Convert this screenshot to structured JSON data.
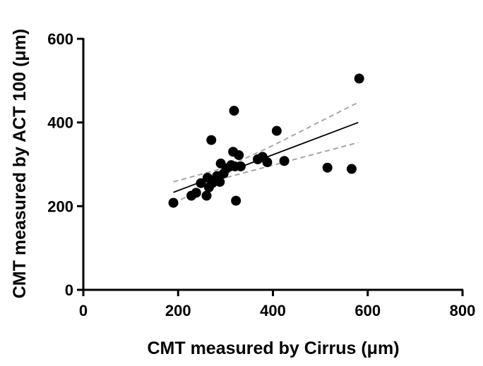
{
  "chart_data": {
    "type": "scatter",
    "title": "",
    "xlabel": "CMT measured by Cirrus (μm)",
    "ylabel": "CMT measured by ACT 100 (μm)",
    "xlim": [
      0,
      800
    ],
    "ylim": [
      0,
      600
    ],
    "xticks": [
      "0",
      "200",
      "400",
      "600",
      "800"
    ],
    "yticks": [
      "0",
      "200",
      "400",
      "600"
    ],
    "grid": false,
    "legend": "none",
    "series": [
      {
        "marker_color": "#000000",
        "points": [
          [
            190,
            208
          ],
          [
            228,
            225
          ],
          [
            238,
            232
          ],
          [
            248,
            255
          ],
          [
            260,
            225
          ],
          [
            262,
            268
          ],
          [
            265,
            245
          ],
          [
            270,
            358
          ],
          [
            272,
            255
          ],
          [
            278,
            262
          ],
          [
            282,
            272
          ],
          [
            288,
            258
          ],
          [
            290,
            302
          ],
          [
            296,
            278
          ],
          [
            302,
            290
          ],
          [
            312,
            298
          ],
          [
            316,
            330
          ],
          [
            318,
            428
          ],
          [
            320,
            295
          ],
          [
            322,
            213
          ],
          [
            328,
            322
          ],
          [
            332,
            295
          ],
          [
            368,
            312
          ],
          [
            378,
            318
          ],
          [
            388,
            305
          ],
          [
            408,
            380
          ],
          [
            424,
            308
          ],
          [
            515,
            292
          ],
          [
            566,
            289
          ],
          [
            582,
            505
          ]
        ]
      }
    ],
    "regression": {
      "color": "#000000",
      "line": [
        [
          190,
          233
        ],
        [
          580,
          400
        ]
      ],
      "ci_color": "#a6a6a6",
      "ci_upper": [
        [
          190,
          258
        ],
        [
          300,
          292
        ],
        [
          400,
          345
        ],
        [
          580,
          448
        ]
      ],
      "ci_lower": [
        [
          190,
          207
        ],
        [
          300,
          268
        ],
        [
          400,
          298
        ],
        [
          580,
          352
        ]
      ]
    }
  }
}
